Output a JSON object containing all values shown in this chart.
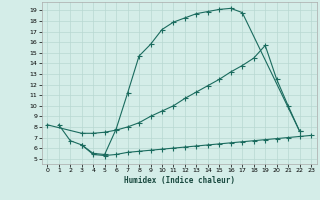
{
  "title": "",
  "xlabel": "Humidex (Indice chaleur)",
  "ylabel": "",
  "bg_color": "#d4ede8",
  "grid_color": "#b8d8d2",
  "line_color": "#1a6b5e",
  "xlim": [
    -0.5,
    23.5
  ],
  "ylim": [
    4.5,
    19.8
  ],
  "xticks": [
    0,
    1,
    2,
    3,
    4,
    5,
    6,
    7,
    8,
    9,
    10,
    11,
    12,
    13,
    14,
    15,
    16,
    17,
    18,
    19,
    20,
    21,
    22,
    23
  ],
  "yticks": [
    5,
    6,
    7,
    8,
    9,
    10,
    11,
    12,
    13,
    14,
    15,
    16,
    17,
    18,
    19
  ],
  "curve1_x": [
    1,
    2,
    3,
    4,
    5,
    6,
    7,
    8,
    9,
    10,
    11,
    12,
    13,
    14,
    15,
    16,
    17,
    22
  ],
  "curve1_y": [
    8.2,
    6.7,
    6.3,
    5.5,
    5.4,
    7.8,
    11.2,
    14.7,
    15.8,
    17.2,
    17.9,
    18.3,
    18.7,
    18.9,
    19.1,
    19.2,
    18.8,
    7.6
  ],
  "curve2_x": [
    0,
    3,
    4,
    5,
    6,
    7,
    8,
    9,
    10,
    11,
    12,
    13,
    14,
    15,
    16,
    17,
    18,
    19,
    20,
    21,
    22
  ],
  "curve2_y": [
    8.2,
    7.4,
    7.4,
    7.5,
    7.7,
    8.0,
    8.4,
    9.0,
    9.5,
    10.0,
    10.7,
    11.3,
    11.9,
    12.5,
    13.2,
    13.8,
    14.5,
    15.7,
    12.5,
    10.0,
    7.6
  ],
  "curve3_x": [
    3,
    4,
    5,
    6,
    7,
    8,
    9,
    10,
    11,
    12,
    13,
    14,
    15,
    16,
    17,
    18,
    19,
    20,
    21,
    22,
    23
  ],
  "curve3_y": [
    6.3,
    5.4,
    5.3,
    5.4,
    5.6,
    5.7,
    5.8,
    5.9,
    6.0,
    6.1,
    6.2,
    6.3,
    6.4,
    6.5,
    6.6,
    6.7,
    6.8,
    6.9,
    7.0,
    7.1,
    7.2
  ]
}
